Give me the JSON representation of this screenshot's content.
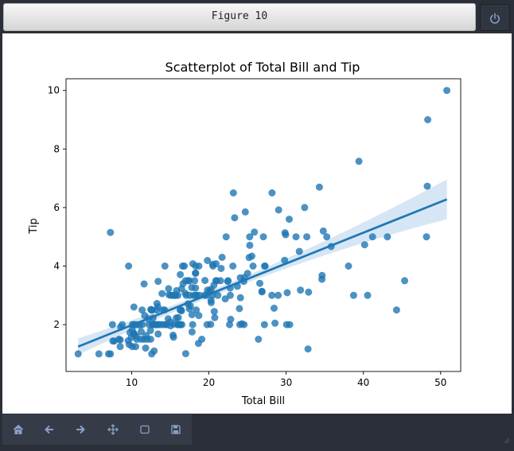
{
  "window": {
    "title": "Figure 10"
  },
  "toolbar": {
    "buttons": [
      "home-icon",
      "back-icon",
      "forward-icon",
      "pan-icon",
      "zoom-icon",
      "save-icon"
    ]
  },
  "colors": {
    "points": "#1f77b4",
    "band": "#c6dbef",
    "text": "#000000"
  },
  "chart_data": {
    "type": "scatter",
    "title": "Scatterplot of Total Bill and Tip",
    "xlabel": "Total Bill",
    "ylabel": "Tip",
    "xlim": [
      1.5,
      52.6
    ],
    "ylim": [
      0.4,
      10.4
    ],
    "xticks": [
      10,
      20,
      30,
      40,
      50
    ],
    "yticks": [
      2,
      4,
      6,
      8,
      10
    ],
    "grid": false,
    "regression": {
      "x": [
        3.07,
        50.81
      ],
      "y": [
        1.25,
        6.28
      ]
    },
    "points": [
      [
        3.07,
        1.0
      ],
      [
        5.75,
        1.0
      ],
      [
        7.25,
        1.0
      ],
      [
        7.25,
        5.15
      ],
      [
        7.51,
        2.0
      ],
      [
        7.56,
        1.44
      ],
      [
        7.74,
        1.44
      ],
      [
        8.35,
        1.5
      ],
      [
        8.51,
        1.25
      ],
      [
        8.52,
        1.48
      ],
      [
        8.58,
        1.92
      ],
      [
        8.77,
        2.0
      ],
      [
        9.55,
        1.45
      ],
      [
        9.6,
        4.0
      ],
      [
        9.68,
        1.32
      ],
      [
        9.78,
        1.73
      ],
      [
        9.94,
        1.56
      ],
      [
        10.07,
        1.83
      ],
      [
        10.07,
        1.25
      ],
      [
        10.09,
        2.0
      ],
      [
        10.27,
        1.71
      ],
      [
        10.29,
        2.6
      ],
      [
        10.33,
        1.67
      ],
      [
        10.33,
        2.0
      ],
      [
        10.34,
        1.66
      ],
      [
        10.34,
        2.0
      ],
      [
        10.51,
        1.25
      ],
      [
        10.59,
        1.61
      ],
      [
        10.63,
        2.0
      ],
      [
        10.65,
        1.5
      ],
      [
        11.02,
        1.98
      ],
      [
        11.17,
        1.5
      ],
      [
        11.24,
        1.76
      ],
      [
        11.35,
        2.5
      ],
      [
        11.38,
        2.0
      ],
      [
        11.59,
        1.5
      ],
      [
        11.61,
        3.39
      ],
      [
        11.69,
        2.31
      ],
      [
        11.87,
        1.63
      ],
      [
        12.03,
        1.5
      ],
      [
        12.16,
        2.2
      ],
      [
        12.26,
        2.0
      ],
      [
        12.43,
        1.8
      ],
      [
        12.46,
        1.5
      ],
      [
        12.48,
        2.52
      ],
      [
        12.54,
        2.5
      ],
      [
        12.6,
        1.0
      ],
      [
        12.66,
        2.5
      ],
      [
        12.69,
        2.0
      ],
      [
        12.74,
        2.01
      ],
      [
        12.76,
        2.23
      ],
      [
        12.9,
        1.1
      ],
      [
        13.0,
        2.0
      ],
      [
        13.03,
        2.0
      ],
      [
        13.13,
        2.0
      ],
      [
        13.27,
        2.5
      ],
      [
        13.28,
        2.72
      ],
      [
        13.37,
        2.0
      ],
      [
        13.39,
        2.61
      ],
      [
        13.42,
        3.48
      ],
      [
        13.42,
        1.68
      ],
      [
        13.51,
        2.0
      ],
      [
        13.81,
        2.0
      ],
      [
        13.94,
        3.06
      ],
      [
        14.07,
        2.5
      ],
      [
        14.15,
        2.0
      ],
      [
        14.26,
        2.5
      ],
      [
        14.31,
        4.0
      ],
      [
        14.48,
        2.0
      ],
      [
        14.52,
        2.0
      ],
      [
        14.73,
        2.2
      ],
      [
        14.78,
        3.23
      ],
      [
        14.83,
        3.02
      ],
      [
        15.01,
        2.09
      ],
      [
        15.04,
        1.96
      ],
      [
        15.06,
        3.0
      ],
      [
        15.36,
        1.64
      ],
      [
        15.38,
        3.0
      ],
      [
        15.42,
        1.57
      ],
      [
        15.48,
        2.02
      ],
      [
        15.53,
        3.0
      ],
      [
        15.69,
        3.0
      ],
      [
        15.77,
        2.23
      ],
      [
        15.81,
        3.16
      ],
      [
        15.95,
        2.0
      ],
      [
        15.98,
        3.0
      ],
      [
        16.0,
        2.0
      ],
      [
        16.04,
        2.24
      ],
      [
        16.21,
        2.0
      ],
      [
        16.27,
        2.5
      ],
      [
        16.29,
        3.71
      ],
      [
        16.31,
        2.0
      ],
      [
        16.4,
        2.5
      ],
      [
        16.45,
        2.47
      ],
      [
        16.47,
        3.23
      ],
      [
        16.49,
        2.0
      ],
      [
        16.58,
        4.0
      ],
      [
        16.66,
        3.4
      ],
      [
        16.82,
        4.0
      ],
      [
        16.93,
        3.07
      ],
      [
        16.97,
        3.5
      ],
      [
        16.99,
        1.01
      ],
      [
        17.07,
        3.0
      ],
      [
        17.29,
        2.71
      ],
      [
        17.31,
        3.5
      ],
      [
        17.46,
        2.54
      ],
      [
        17.47,
        3.5
      ],
      [
        17.51,
        3.0
      ],
      [
        17.59,
        2.64
      ],
      [
        17.78,
        3.27
      ],
      [
        17.81,
        2.34
      ],
      [
        17.82,
        1.75
      ],
      [
        17.89,
        2.0
      ],
      [
        17.92,
        4.08
      ],
      [
        18.04,
        3.0
      ],
      [
        18.15,
        3.5
      ],
      [
        18.24,
        3.76
      ],
      [
        18.26,
        3.25
      ],
      [
        18.28,
        4.0
      ],
      [
        18.29,
        3.0
      ],
      [
        18.29,
        3.76
      ],
      [
        18.35,
        2.5
      ],
      [
        18.43,
        3.0
      ],
      [
        18.64,
        1.36
      ],
      [
        18.69,
        2.31
      ],
      [
        18.71,
        4.0
      ],
      [
        18.78,
        3.0
      ],
      [
        19.08,
        1.5
      ],
      [
        19.44,
        3.0
      ],
      [
        19.49,
        3.51
      ],
      [
        19.65,
        3.0
      ],
      [
        19.77,
        2.0
      ],
      [
        19.81,
        4.19
      ],
      [
        19.82,
        3.18
      ],
      [
        20.08,
        3.15
      ],
      [
        20.23,
        2.01
      ],
      [
        20.27,
        2.83
      ],
      [
        20.29,
        2.75
      ],
      [
        20.29,
        3.21
      ],
      [
        20.45,
        3.0
      ],
      [
        20.49,
        4.06
      ],
      [
        20.53,
        4.0
      ],
      [
        20.65,
        3.35
      ],
      [
        20.69,
        2.45
      ],
      [
        20.76,
        2.24
      ],
      [
        20.9,
        3.5
      ],
      [
        20.92,
        4.08
      ],
      [
        21.01,
        3.5
      ],
      [
        21.16,
        3.0
      ],
      [
        21.5,
        3.5
      ],
      [
        21.58,
        3.92
      ],
      [
        21.7,
        4.3
      ],
      [
        22.12,
        2.88
      ],
      [
        22.23,
        5.0
      ],
      [
        22.42,
        3.48
      ],
      [
        22.49,
        3.5
      ],
      [
        22.67,
        2.0
      ],
      [
        22.75,
        3.25
      ],
      [
        22.76,
        3.0
      ],
      [
        22.82,
        2.18
      ],
      [
        23.1,
        4.0
      ],
      [
        23.17,
        6.5
      ],
      [
        23.33,
        5.65
      ],
      [
        23.68,
        3.31
      ],
      [
        23.95,
        2.55
      ],
      [
        24.01,
        2.0
      ],
      [
        24.06,
        3.6
      ],
      [
        24.08,
        2.92
      ],
      [
        24.27,
        2.03
      ],
      [
        24.52,
        3.48
      ],
      [
        24.55,
        2.0
      ],
      [
        24.59,
        3.61
      ],
      [
        24.71,
        5.85
      ],
      [
        25.0,
        3.75
      ],
      [
        25.21,
        4.29
      ],
      [
        25.28,
        5.0
      ],
      [
        25.29,
        4.71
      ],
      [
        25.56,
        4.34
      ],
      [
        25.71,
        4.0
      ],
      [
        25.89,
        5.16
      ],
      [
        26.41,
        1.5
      ],
      [
        26.59,
        3.41
      ],
      [
        26.86,
        3.14
      ],
      [
        26.88,
        3.12
      ],
      [
        27.05,
        5.0
      ],
      [
        27.18,
        2.0
      ],
      [
        27.2,
        4.0
      ],
      [
        27.28,
        4.0
      ],
      [
        28.15,
        3.0
      ],
      [
        28.17,
        6.5
      ],
      [
        28.44,
        2.56
      ],
      [
        28.55,
        2.05
      ],
      [
        28.97,
        3.0
      ],
      [
        29.03,
        5.92
      ],
      [
        29.8,
        4.2
      ],
      [
        29.85,
        5.14
      ],
      [
        29.93,
        5.07
      ],
      [
        30.06,
        2.0
      ],
      [
        30.14,
        3.09
      ],
      [
        30.4,
        5.6
      ],
      [
        30.46,
        2.0
      ],
      [
        31.27,
        5.0
      ],
      [
        31.71,
        4.5
      ],
      [
        31.85,
        3.18
      ],
      [
        32.4,
        6.0
      ],
      [
        32.68,
        5.0
      ],
      [
        32.83,
        1.17
      ],
      [
        32.9,
        3.11
      ],
      [
        34.3,
        6.7
      ],
      [
        34.63,
        3.55
      ],
      [
        34.65,
        3.68
      ],
      [
        34.81,
        5.2
      ],
      [
        35.26,
        5.0
      ],
      [
        35.83,
        4.67
      ],
      [
        38.07,
        4.0
      ],
      [
        38.73,
        3.0
      ],
      [
        39.42,
        7.58
      ],
      [
        40.17,
        4.73
      ],
      [
        40.55,
        3.0
      ],
      [
        41.19,
        5.0
      ],
      [
        43.11,
        5.0
      ],
      [
        44.3,
        2.5
      ],
      [
        45.35,
        3.5
      ],
      [
        48.17,
        5.0
      ],
      [
        48.27,
        6.73
      ],
      [
        48.33,
        9.0
      ],
      [
        50.81,
        10.0
      ],
      [
        7.0,
        1.0
      ],
      [
        11.8,
        1.2
      ]
    ]
  }
}
